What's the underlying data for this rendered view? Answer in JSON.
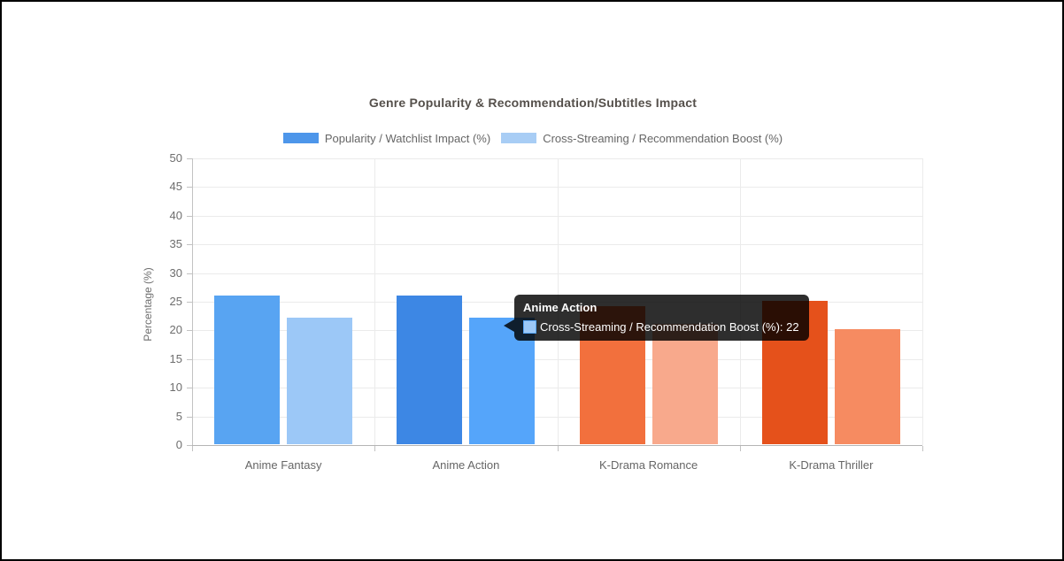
{
  "frame": {
    "background": "#ffffff",
    "border_color": "#000000",
    "grid_color": "#ebebeb",
    "axis_color": "#b5b5b5",
    "tick_text_color": "#6e6e6e"
  },
  "chart_data": {
    "type": "bar",
    "title": "Genre Popularity & Recommendation/Subtitles Impact",
    "xlabel": "",
    "ylabel": "Percentage (%)",
    "ylim": [
      0,
      50
    ],
    "ytick_step": 5,
    "grid": true,
    "legend_position": "top",
    "categories": [
      "Anime Fantasy",
      "Anime Action",
      "K-Drama Romance",
      "K-Drama Thriller"
    ],
    "series": [
      {
        "name": "Popularity / Watchlist Impact (%)",
        "legend_color": "#4d96ea",
        "values": [
          26,
          26,
          24,
          25
        ],
        "bar_colors": [
          "#58a4f2",
          "#3d87e4",
          "#f2703d",
          "#e5511b"
        ]
      },
      {
        "name": "Cross-Streaming / Recommendation Boost (%)",
        "legend_color": "#a8cdf5",
        "values": [
          22,
          22,
          21,
          20
        ],
        "bar_colors": [
          "#9cc8f7",
          "#55a5fa",
          "#f8a98c",
          "#f68b61"
        ]
      }
    ]
  },
  "tooltip": {
    "title": "Anime Action",
    "label": "Cross-Streaming / Recommendation Boost (%): 22",
    "swatch_fill": "#9cc8f7",
    "swatch_border": "#55a5fa",
    "background": "rgba(0,0,0,0.82)"
  }
}
